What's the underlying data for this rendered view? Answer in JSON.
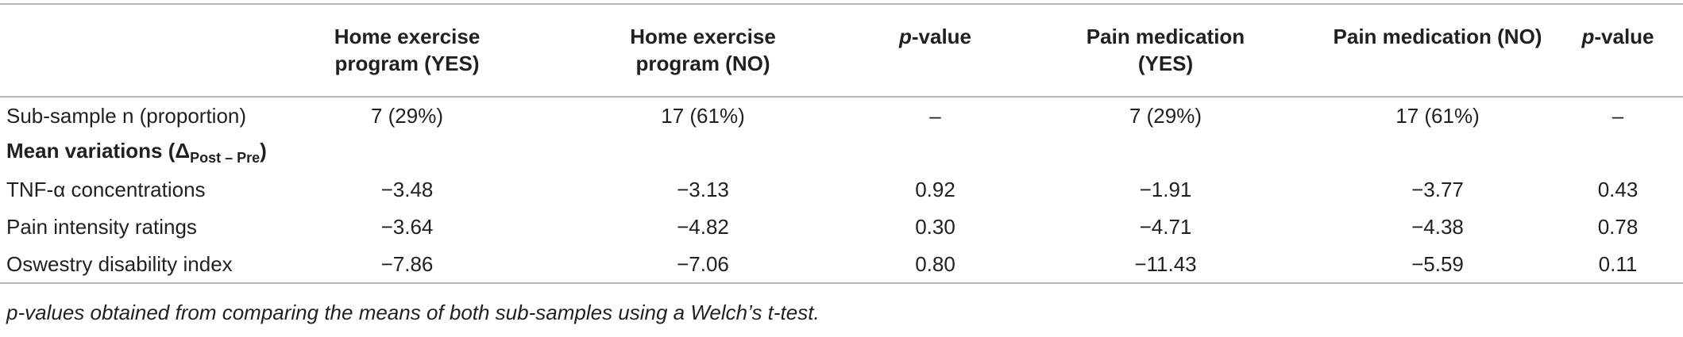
{
  "headers": {
    "col1": "",
    "col2_line1": "Home exercise",
    "col2_line2": "program (YES)",
    "col3_line1": "Home exercise",
    "col3_line2": "program (NO)",
    "col4_p": "p",
    "col4_rest": "-value",
    "col5_line1": "Pain medication",
    "col5_line2": "(YES)",
    "col6": "Pain medication (NO)",
    "col7_p": "p",
    "col7_rest": "-value"
  },
  "row_subsample": {
    "label": "Sub-sample n (proportion)",
    "values": [
      "7 (29%)",
      "17 (61%)",
      "–",
      "7 (29%)",
      "17 (61%)",
      "–"
    ]
  },
  "section": {
    "label_main": "Mean variations (Δ",
    "label_sub": "Post – Pre",
    "label_close": ")"
  },
  "rows": [
    {
      "label": "TNF-α concentrations",
      "values": [
        "−3.48",
        "−3.13",
        "0.92",
        "−1.91",
        "−3.77",
        "0.43"
      ]
    },
    {
      "label": "Pain intensity ratings",
      "values": [
        "−3.64",
        "−4.82",
        "0.30",
        "−4.71",
        "−4.38",
        "0.78"
      ]
    },
    {
      "label": "Oswestry disability index",
      "values": [
        "−7.86",
        "−7.06",
        "0.80",
        "−11.43",
        "−5.59",
        "0.11"
      ]
    }
  ],
  "footnote": "p-values obtained from comparing the means of both sub-samples using a Welch’s t-test."
}
